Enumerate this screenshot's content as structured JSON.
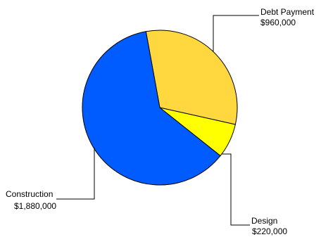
{
  "chart_data": {
    "type": "pie",
    "slices": [
      {
        "label": "Debt Payment",
        "value_text": "$960,000",
        "value": 960000,
        "color": "#FFD83F"
      },
      {
        "label": "Design",
        "value_text": "$220,000",
        "value": 220000,
        "color": "#FFFF00"
      },
      {
        "label": "Construction",
        "value_text": "$1,880,000",
        "value": 1880000,
        "color": "#005CFF"
      }
    ],
    "legend": "none",
    "grid": false
  }
}
